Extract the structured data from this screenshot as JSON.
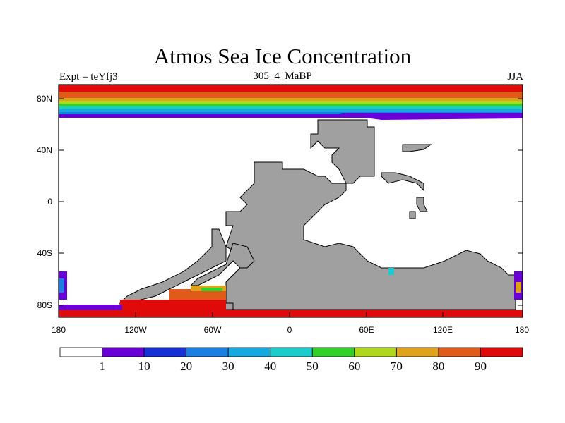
{
  "title": "Atmos Sea Ice Concentration",
  "subtitle_left": "Expt = teYfj3",
  "subtitle_center": "305_4_MaBP",
  "subtitle_right": "JJA",
  "y_axis_labels": [
    "80N",
    "40N",
    "0",
    "40S",
    "80S"
  ],
  "x_axis_labels": [
    "180",
    "120W",
    "60W",
    "0",
    "60E",
    "120E",
    "180"
  ],
  "colorbar": {
    "labels": [
      "1",
      "10",
      "20",
      "30",
      "40",
      "50",
      "60",
      "70",
      "80",
      "90"
    ],
    "colors": [
      "#ffffff",
      "#6a00d8",
      "#1630d8",
      "#1a7fe0",
      "#16a8e0",
      "#1acccc",
      "#33d02a",
      "#b0d81a",
      "#e0a21a",
      "#e05a1a",
      "#e00a0a"
    ]
  },
  "colors": {
    "land": "#a0a0a0",
    "land_edge": "#000000",
    "ocean": "#ffffff"
  }
}
